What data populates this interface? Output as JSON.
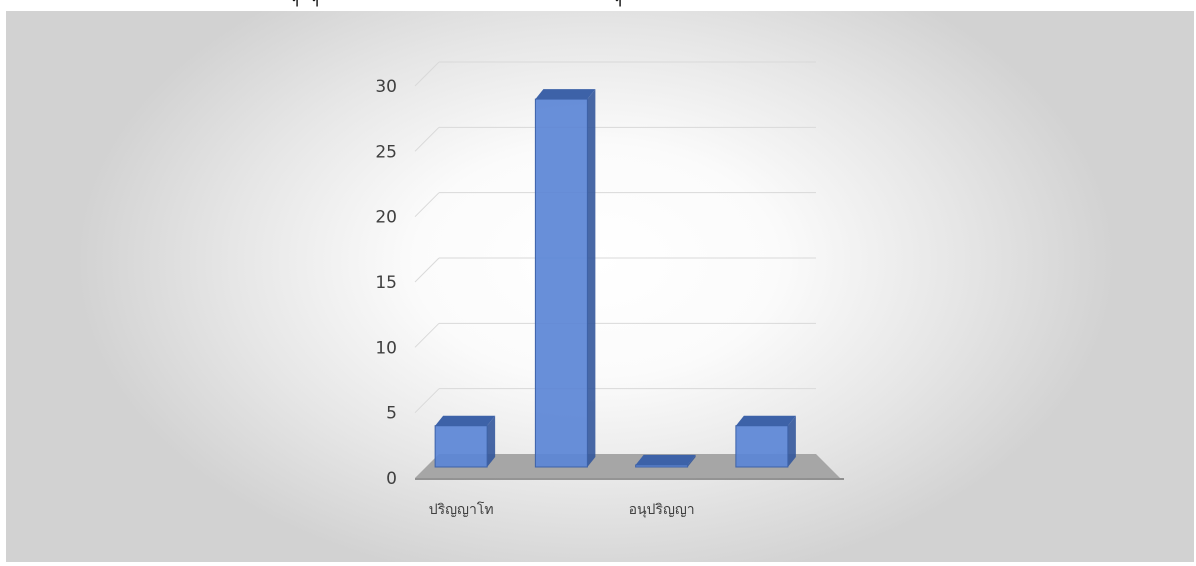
{
  "chart_data": {
    "type": "bar",
    "categories": [
      "ปริญญาโท",
      "",
      "อนุปริญญา",
      ""
    ],
    "values": [
      4,
      29,
      1,
      4
    ],
    "ylim": [
      0,
      30
    ],
    "yticks": [
      0,
      5,
      10,
      15,
      20,
      25,
      30
    ],
    "grid": true,
    "style": "3d-column",
    "colors": {
      "bar_front": "#5b86d6",
      "bar_top": "#3d62a8",
      "bar_side": "#34589c",
      "floor": "#a6a6a6",
      "grid": "#d9d9d9"
    }
  },
  "header_marks": [
    "ๆ",
    "ๆ",
    "ๆ"
  ]
}
